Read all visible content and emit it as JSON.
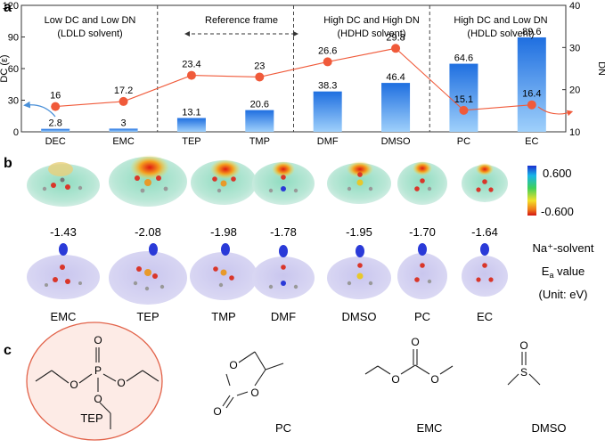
{
  "panel_labels": {
    "a": "a",
    "b": "b",
    "c": "c"
  },
  "chart_data": {
    "type": "bar",
    "categories": [
      "DEC",
      "EMC",
      "TEP",
      "TMP",
      "DMF",
      "DMSO",
      "PC",
      "EC"
    ],
    "series": [
      {
        "name": "DC",
        "type": "bar",
        "axis": "left",
        "values": [
          2.8,
          3,
          13.1,
          20.6,
          38.3,
          46.4,
          64.6,
          89.6
        ],
        "color": "#2f86e8"
      },
      {
        "name": "DN",
        "type": "line",
        "axis": "right",
        "values": [
          16,
          17.2,
          23.4,
          23,
          26.6,
          29.8,
          15.1,
          16.4
        ],
        "color": "#f05a3a"
      }
    ],
    "bar_labels": [
      "2.8",
      "3",
      "13.1",
      "20.6",
      "38.3",
      "46.4",
      "64.6",
      "89.6"
    ],
    "dn_labels": [
      "16",
      "17.2",
      "23.4",
      "23",
      "26.6",
      "29.8",
      "15.1",
      "16.4"
    ],
    "ylabel": "DC (ε)",
    "y2label": "DN",
    "ylim": [
      0,
      120
    ],
    "y2lim": [
      10,
      40
    ],
    "yticks": [
      "0",
      "30",
      "60",
      "90",
      "120"
    ],
    "y2ticks": [
      "10",
      "20",
      "30",
      "40"
    ],
    "regions": [
      {
        "line1": "Low DC and Low DN",
        "line2": "(LDLD solvent)"
      },
      {
        "line1": "Reference frame",
        "line2": ""
      },
      {
        "line1": "High DC and High DN",
        "line2": "(HDHD solvent)"
      },
      {
        "line1": "High DC and Low DN",
        "line2": "(HDLD solvent)"
      }
    ]
  },
  "esp": {
    "solvents": [
      "EMC",
      "TEP",
      "TMP",
      "DMF",
      "DMSO",
      "PC",
      "EC"
    ],
    "ea_values": [
      "-1.43",
      "-2.08",
      "-1.98",
      "-1.78",
      "-1.95",
      "-1.70",
      "-1.64"
    ],
    "scale_max": "0.600",
    "scale_min": "-0.600",
    "legend_line1": "Na⁺-solvent",
    "legend_line2_main": "E",
    "legend_line2_sub": "a",
    "legend_line2_rest": " value",
    "legend_line3": "(Unit: eV)"
  },
  "structures": {
    "labels": [
      "TEP",
      "PC",
      "EMC",
      "DMSO"
    ],
    "atoms": {
      "O": "O",
      "P": "P",
      "S": "S"
    }
  }
}
